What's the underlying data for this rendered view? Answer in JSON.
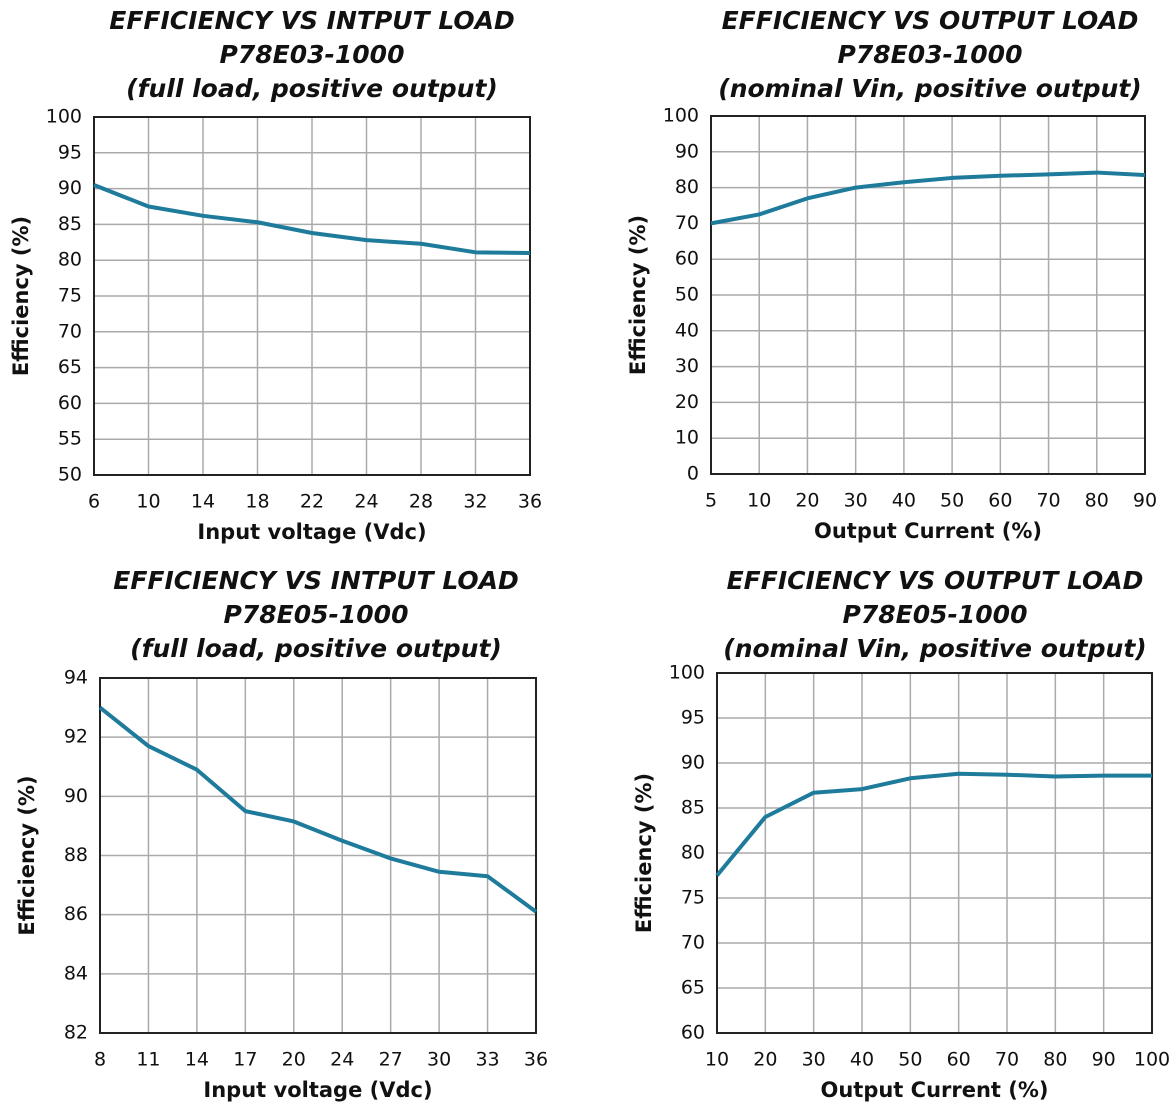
{
  "chart_data": [
    {
      "type": "line",
      "title": [
        "EFFICIENCY VS INTPUT LOAD",
        "P78E03-1000",
        "(full load, positive output)"
      ],
      "x_label": "Input voltage (Vdc)",
      "y_label": "Efficiency (%)",
      "categories": [
        "6",
        "10",
        "14",
        "18",
        "22",
        "24",
        "28",
        "32",
        "36"
      ],
      "series": [
        {
          "color": "#1e7b9b",
          "values": [
            90.5,
            87.5,
            86.2,
            85.3,
            83.8,
            82.8,
            82.3,
            81.1,
            81.0
          ]
        }
      ],
      "ylim": [
        50,
        100
      ],
      "yticks": [
        50,
        55,
        60,
        65,
        70,
        75,
        80,
        85,
        90,
        95,
        100
      ],
      "grid": true
    },
    {
      "type": "line",
      "title": [
        "EFFICIENCY VS OUTPUT LOAD",
        "P78E03-1000",
        "(nominal Vin, positive output)"
      ],
      "x_label": "Output Current (%)",
      "y_label": "Efficiency (%)",
      "categories": [
        "5",
        "10",
        "20",
        "30",
        "40",
        "50",
        "60",
        "70",
        "80",
        "90"
      ],
      "series": [
        {
          "color": "#1e7b9b",
          "values": [
            70,
            72.5,
            77,
            80,
            81.5,
            82.7,
            83.3,
            83.7,
            84.2,
            83.5
          ]
        }
      ],
      "ylim": [
        0,
        100
      ],
      "yticks": [
        0,
        10,
        20,
        30,
        40,
        50,
        60,
        70,
        80,
        90,
        100
      ],
      "grid": true
    },
    {
      "type": "line",
      "title": [
        "EFFICIENCY VS INTPUT LOAD",
        "P78E05-1000",
        "(full load, positive output)"
      ],
      "x_label": "Input voltage (Vdc)",
      "y_label": "Efficiency (%)",
      "categories": [
        "8",
        "11",
        "14",
        "17",
        "20",
        "24",
        "27",
        "30",
        "33",
        "36"
      ],
      "series": [
        {
          "color": "#1e7b9b",
          "values": [
            93.0,
            91.7,
            90.9,
            89.5,
            89.15,
            88.5,
            87.9,
            87.45,
            87.3,
            86.1
          ]
        }
      ],
      "ylim": [
        82,
        94
      ],
      "yticks": [
        82,
        84,
        86,
        88,
        90,
        92,
        94
      ],
      "grid": true
    },
    {
      "type": "line",
      "title": [
        "EFFICIENCY VS OUTPUT LOAD",
        "P78E05-1000",
        "(nominal Vin, positive output)"
      ],
      "x_label": "Output Current (%)",
      "y_label": "Efficiency (%)",
      "categories": [
        "10",
        "20",
        "30",
        "40",
        "50",
        "60",
        "70",
        "80",
        "90",
        "100"
      ],
      "series": [
        {
          "color": "#1e7b9b",
          "values": [
            77.5,
            84,
            86.7,
            87.1,
            88.3,
            88.8,
            88.7,
            88.5,
            88.6,
            88.6
          ]
        }
      ],
      "ylim": [
        60,
        100
      ],
      "yticks": [
        60,
        65,
        70,
        75,
        80,
        85,
        90,
        95,
        100
      ],
      "grid": true
    }
  ]
}
